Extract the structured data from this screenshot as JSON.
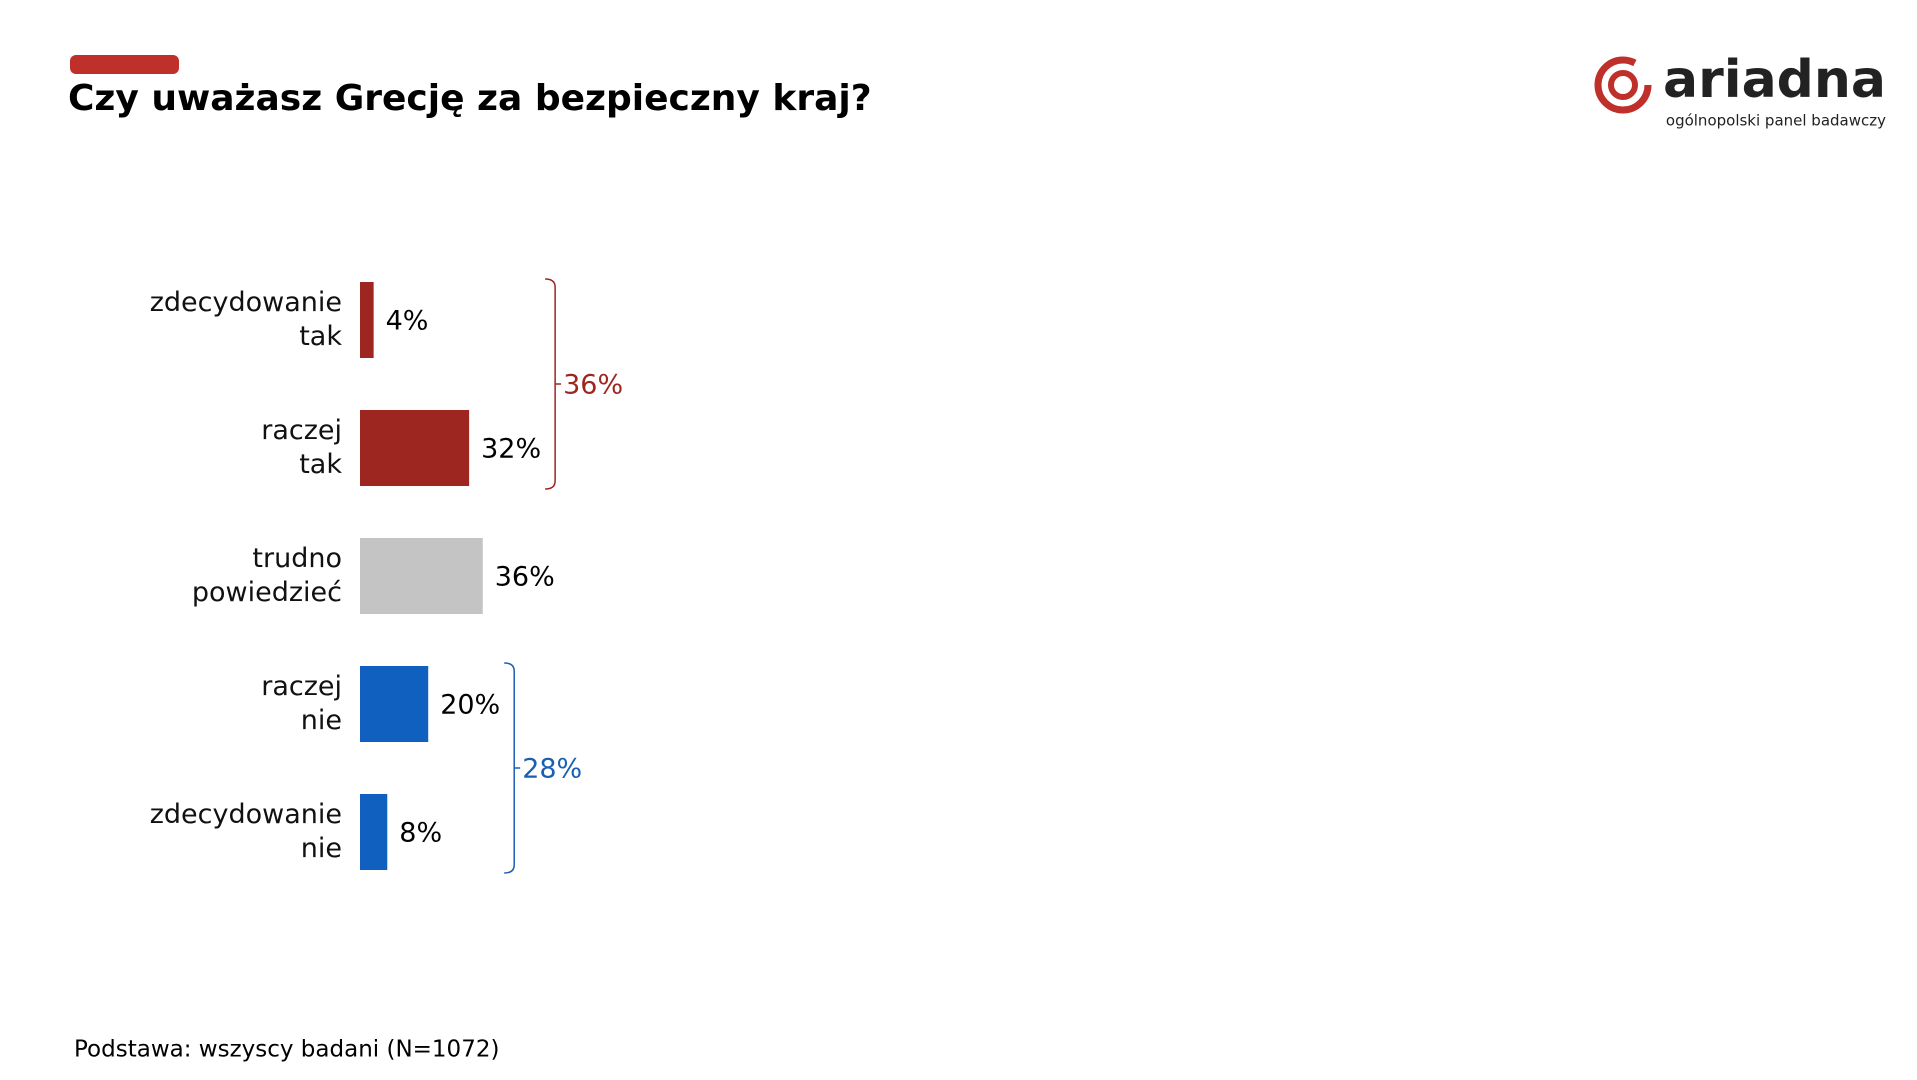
{
  "chart_data": {
    "type": "bar",
    "orientation": "horizontal",
    "title": "Czy uważasz Grecję za bezpieczny kraj?",
    "categories": [
      "zdecydowanie tak",
      "raczej tak",
      "trudno powiedzieć",
      "raczej nie",
      "zdecydowanie nie"
    ],
    "values": [
      4,
      32,
      36,
      20,
      8
    ],
    "value_labels": [
      "4%",
      "32%",
      "36%",
      "20%",
      "8%"
    ],
    "colors": [
      "#9e2620",
      "#9e2620",
      "#c4c4c4",
      "#1060bf",
      "#1060bf"
    ],
    "brackets": [
      {
        "label": "36%",
        "value": 36,
        "categories": [
          0,
          1
        ],
        "color": "#9e2620"
      },
      {
        "label": "28%",
        "value": 28,
        "categories": [
          3,
          4
        ],
        "color": "#1a5fb4"
      }
    ]
  },
  "logo": {
    "name": "ariadna",
    "tagline": "ogólnopolski panel badawczy"
  },
  "footer": "Podstawa: wszyscy badani (N=1072)"
}
